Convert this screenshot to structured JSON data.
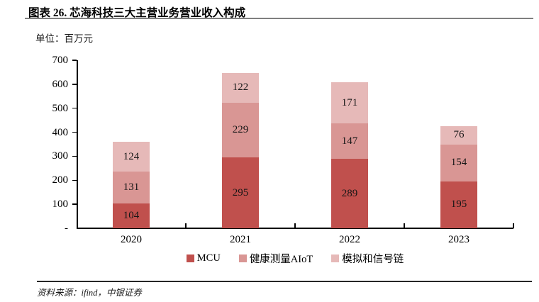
{
  "figure": {
    "title": "图表 26. 芯海科技三大主营业务营业收入构成",
    "unit_label": "单位：百万元",
    "source": "资料来源：ifind，中银证券"
  },
  "chart_data": {
    "type": "bar",
    "stacked": true,
    "title": "芯海科技三大主营业务营业收入构成",
    "ylabel": "百万元",
    "xlabel": "",
    "categories": [
      "2020",
      "2021",
      "2022",
      "2023"
    ],
    "series": [
      {
        "name": "MCU",
        "color": "#C0504D",
        "values": [
          104,
          295,
          289,
          195
        ]
      },
      {
        "name": "健康测量AIoT",
        "color": "#D99694",
        "values": [
          131,
          229,
          147,
          154
        ]
      },
      {
        "name": "模拟和信号链",
        "color": "#E6B9B8",
        "values": [
          124,
          122,
          171,
          76
        ]
      }
    ],
    "totals": [
      359,
      646,
      607,
      425
    ],
    "ylim": [
      0,
      700
    ],
    "ytick_step": 100,
    "ytick_labels": [
      "-",
      "100",
      "200",
      "300",
      "400",
      "500",
      "600",
      "700"
    ],
    "grid": false,
    "data_labels": true,
    "legend_position": "bottom",
    "axis_color": "#000000"
  }
}
